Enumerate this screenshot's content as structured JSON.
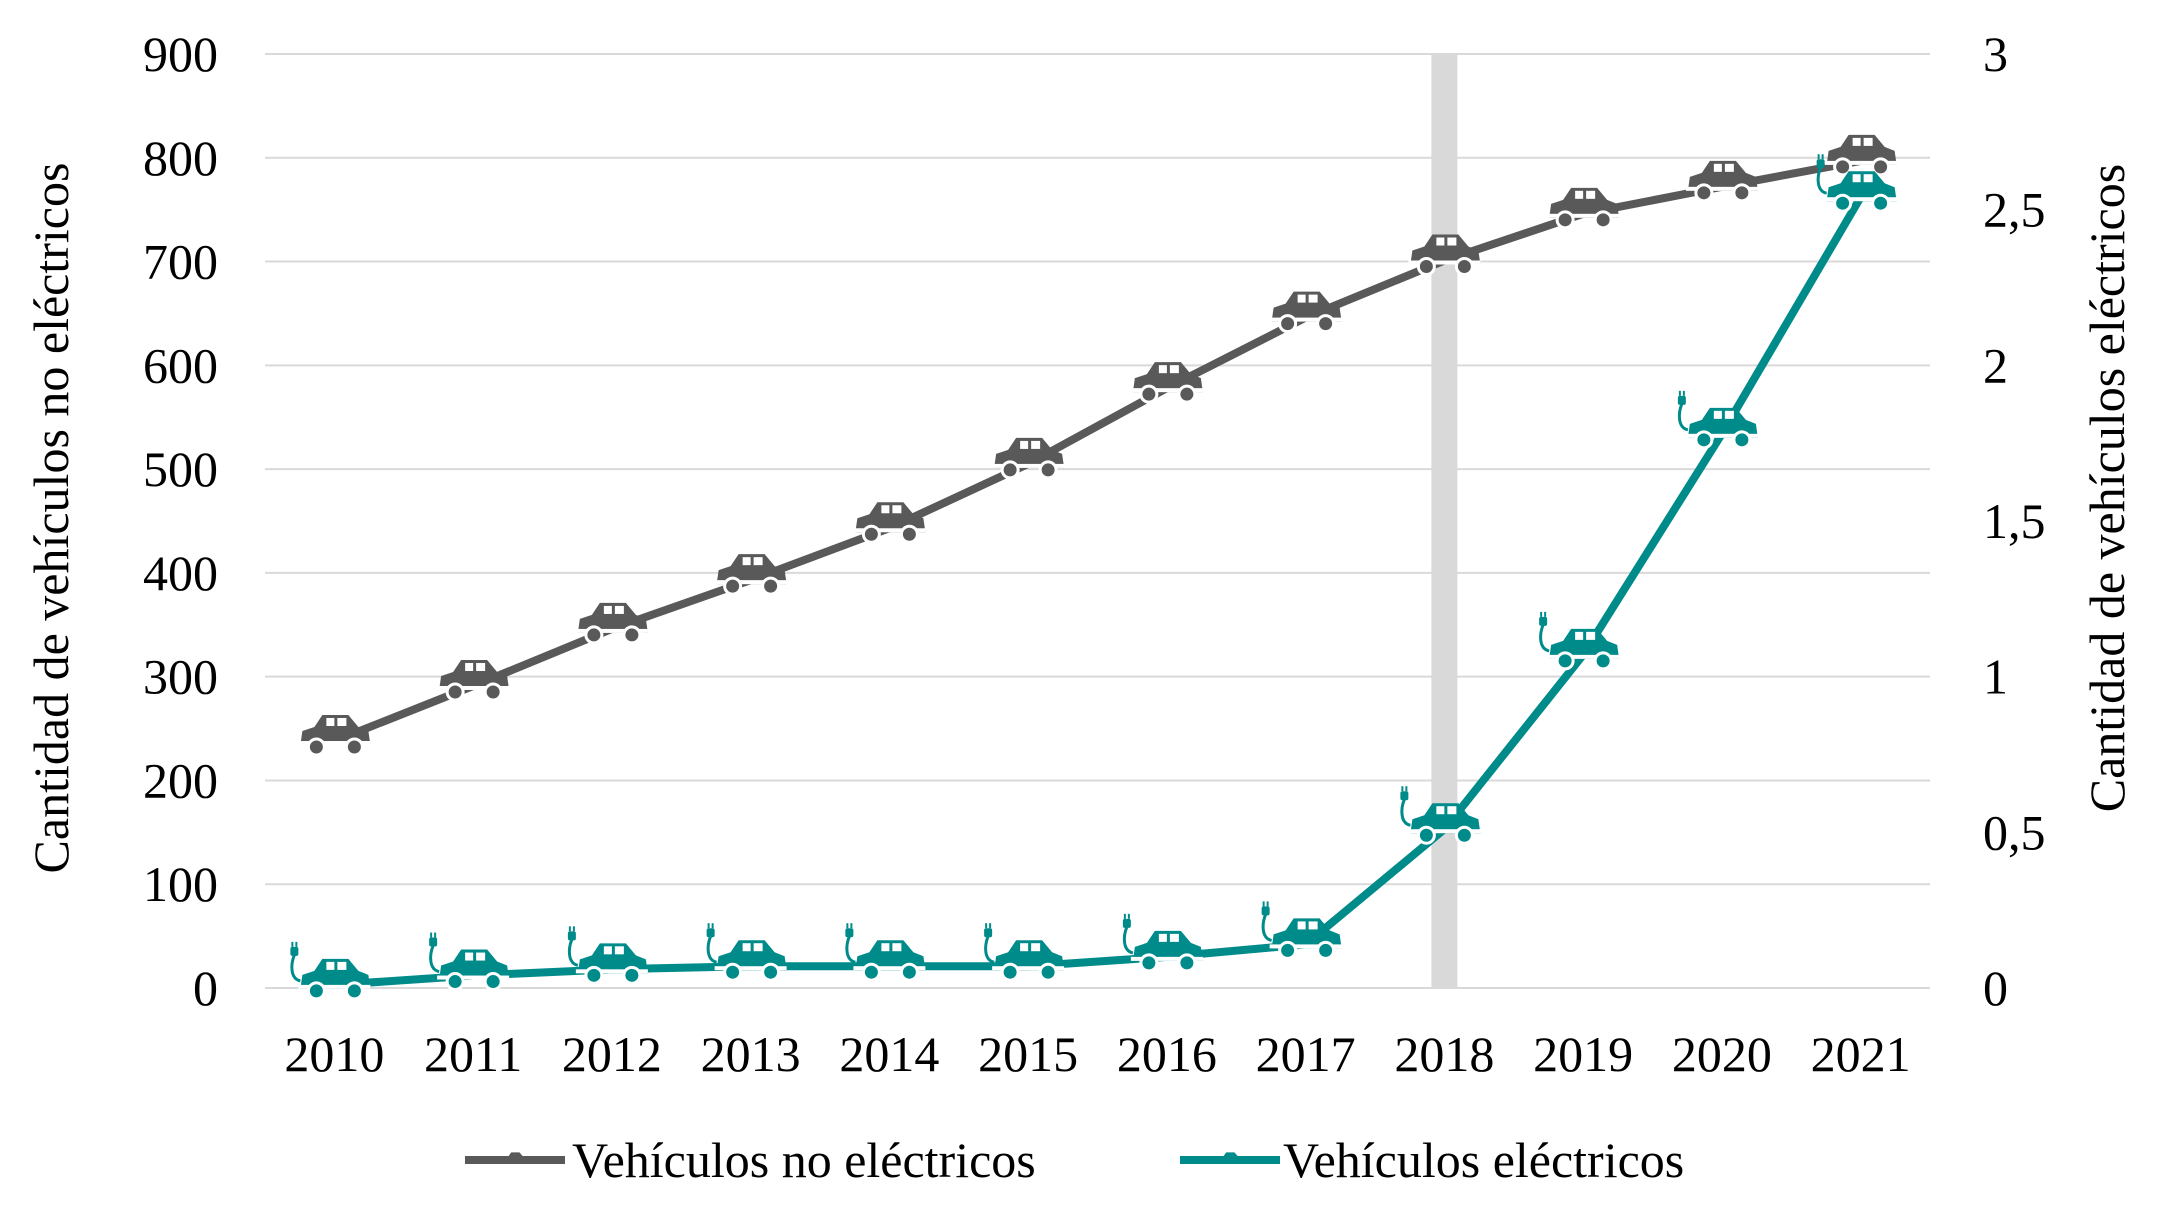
{
  "chart_data": {
    "type": "line",
    "categories": [
      "2010",
      "2011",
      "2012",
      "2013",
      "2014",
      "2015",
      "2016",
      "2017",
      "2018",
      "2019",
      "2020",
      "2021"
    ],
    "left_axis": {
      "label": "Cantidad de vehículos no eléctricos",
      "ylim": [
        0,
        900
      ],
      "ticks": [
        "0",
        "100",
        "200",
        "300",
        "400",
        "500",
        "600",
        "700",
        "800",
        "900"
      ]
    },
    "right_axis": {
      "label": "Cantidad de vehículos eléctricos",
      "ylim": [
        0,
        3
      ],
      "ticks": [
        "0",
        "0,5",
        "1",
        "1,5",
        "2",
        "2,5",
        "3"
      ]
    },
    "series": [
      {
        "name": "Vehículos no eléctricos",
        "axis": "left",
        "color": "#595959",
        "marker_icon": "car-icon",
        "values": [
          238,
          291,
          346,
          393,
          443,
          505,
          578,
          646,
          701,
          746,
          772,
          797
        ]
      },
      {
        "name": "Vehículos eléctricos",
        "axis": "right",
        "color": "#008b8b",
        "marker_icon": "electric-car-icon",
        "values": [
          0.01,
          0.04,
          0.06,
          0.07,
          0.07,
          0.07,
          0.1,
          0.14,
          0.51,
          1.07,
          1.78,
          2.54
        ]
      }
    ],
    "highlight_category": "2018",
    "grid": true,
    "legend_position": "bottom"
  }
}
